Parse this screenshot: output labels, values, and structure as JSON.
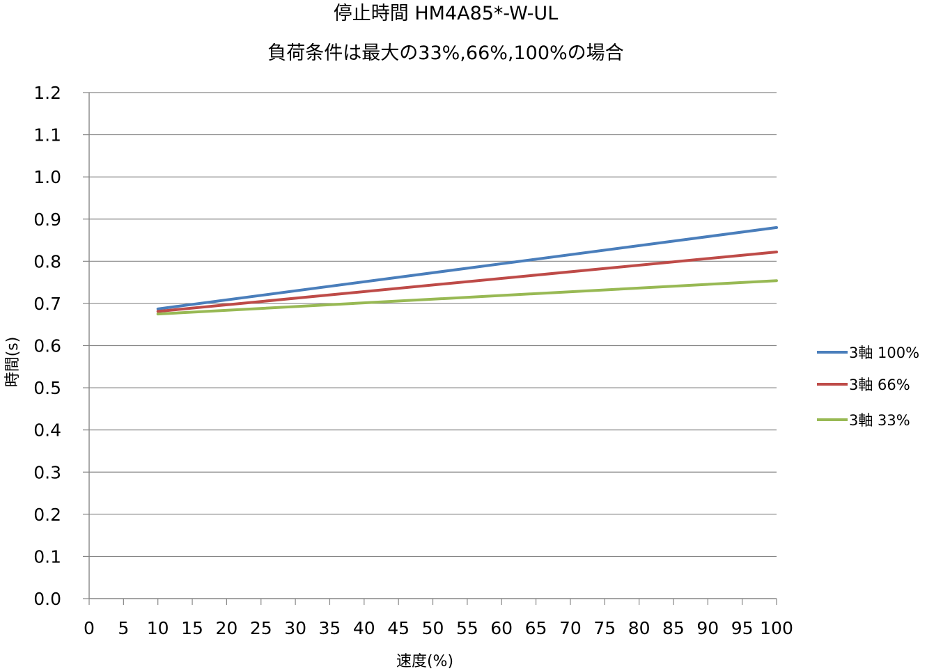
{
  "chart_data": {
    "type": "line",
    "title": "停止時間 HM4A85*-W-UL",
    "subtitle": "負荷条件は最大の33%,66%,100%の場合",
    "xlabel": "速度(%)",
    "ylabel": "時間(s)",
    "xlim": [
      0,
      100
    ],
    "ylim": [
      0,
      1.2
    ],
    "x_ticks": [
      "0",
      "5",
      "10",
      "15",
      "20",
      "25",
      "30",
      "35",
      "40",
      "45",
      "50",
      "55",
      "60",
      "65",
      "70",
      "75",
      "80",
      "85",
      "90",
      "95",
      "100"
    ],
    "y_ticks": [
      "0.0",
      "0.1",
      "0.2",
      "0.3",
      "0.4",
      "0.5",
      "0.6",
      "0.7",
      "0.8",
      "0.9",
      "1.0",
      "1.1",
      "1.2"
    ],
    "grid": "horizontal",
    "legend_position": "right",
    "series": [
      {
        "name": "3軸 100%",
        "color": "#4a7ebb",
        "x": [
          10,
          100
        ],
        "y": [
          0.687,
          0.88
        ]
      },
      {
        "name": "3軸 66%",
        "color": "#be4b48",
        "x": [
          10,
          100
        ],
        "y": [
          0.681,
          0.822
        ]
      },
      {
        "name": "3軸 33%",
        "color": "#98b954",
        "x": [
          10,
          100
        ],
        "y": [
          0.675,
          0.754
        ]
      }
    ]
  }
}
